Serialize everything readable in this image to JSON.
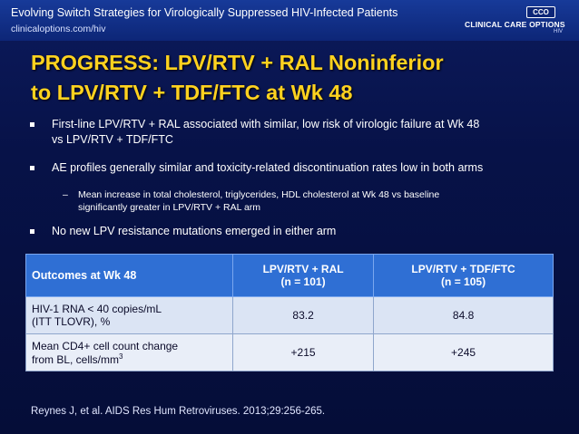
{
  "header": {
    "title": "Evolving Switch Strategies for Virologically Suppressed HIV-Infected Patients",
    "url": "clinicaloptions.com/hiv",
    "logo_badge": "CCO",
    "logo_text": "CLINICAL CARE OPTIONS",
    "logo_sub": "HIV"
  },
  "slide_title": {
    "line1": "PROGRESS: LPV/RTV + RAL Noninferior",
    "line2": "to LPV/RTV + TDF/FTC at Wk 48"
  },
  "bullets": [
    {
      "line1": "First-line LPV/RTV + RAL associated with similar, low risk of virologic failure at Wk 48",
      "line2": "vs LPV/RTV + TDF/FTC"
    },
    {
      "line1": "AE profiles generally similar and toxicity-related discontinuation rates low in both arms"
    },
    {
      "line1": "No new LPV resistance mutations emerged in either arm"
    }
  ],
  "sub_bullet": {
    "line1": "Mean increase in total cholesterol, triglycerides, HDL cholesterol at Wk 48 vs baseline",
    "line2": "significantly greater in LPV/RTV + RAL arm"
  },
  "table": {
    "headers": {
      "outcome": "Outcomes at Wk 48",
      "arm1_line1": "LPV/RTV + RAL",
      "arm1_line2": "(n = 101)",
      "arm2_line1": "LPV/RTV + TDF/FTC",
      "arm2_line2": "(n = 105)"
    },
    "rows": [
      {
        "label_line1": "HIV-1 RNA < 40 copies/mL",
        "label_line2": "(ITT TLOVR), %",
        "arm1": "83.2",
        "arm2": "84.8"
      },
      {
        "label_line1": "Mean CD4+ cell count change",
        "label_line2": "from BL, cells/mm",
        "label_sup": "3",
        "arm1": "+215",
        "arm2": "+245"
      }
    ]
  },
  "citation": "Reynes J, et al. AIDS Res Hum Retroviruses. 2013;29:256-265."
}
